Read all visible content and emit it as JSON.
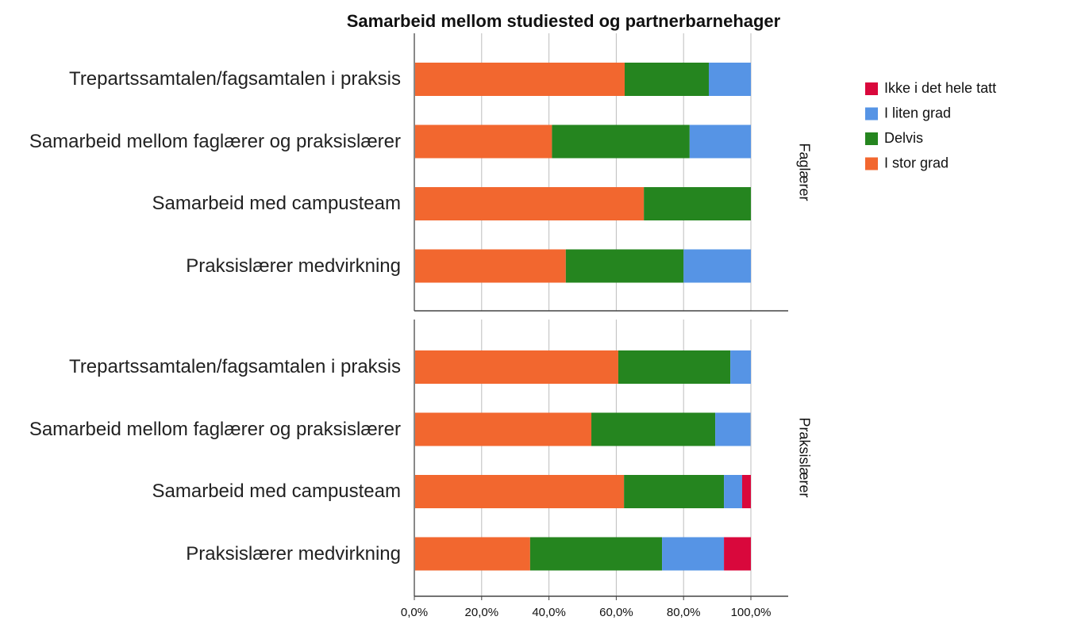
{
  "chart_data": {
    "type": "bar",
    "orientation": "horizontal",
    "stacked": true,
    "title": "Samarbeid mellom studiested og partnerbarnehager",
    "facets": [
      "Faglærer",
      "Praksislærer"
    ],
    "categories": [
      "Trepartssamtalen/fagsamtalen i praksis",
      "Samarbeid mellom faglærer og praksislærer",
      "Samarbeid med campusteam",
      "Praksislærer medvirkning"
    ],
    "series": [
      {
        "name": "Ikke i det hele tatt",
        "color": "#d9083c",
        "values": [
          [
            0,
            0,
            0,
            0
          ],
          [
            0,
            0,
            2.6,
            8.0
          ]
        ]
      },
      {
        "name": "I liten grad",
        "color": "#5694e5",
        "values": [
          [
            12.5,
            18.2,
            0,
            20.0
          ],
          [
            6.1,
            10.5,
            5.4,
            18.4
          ]
        ]
      },
      {
        "name": "Delvis",
        "color": "#25851f",
        "values": [
          [
            25.0,
            40.9,
            31.8,
            35.0
          ],
          [
            33.3,
            36.8,
            29.7,
            39.2
          ]
        ]
      },
      {
        "name": "I stor grad",
        "color": "#f2672f",
        "values": [
          [
            62.5,
            40.9,
            68.2,
            45.0
          ],
          [
            60.6,
            52.6,
            62.3,
            34.4
          ]
        ]
      }
    ],
    "xlim": [
      0,
      100
    ],
    "xticks": [
      {
        "value": 0,
        "label": "0,0%"
      },
      {
        "value": 20,
        "label": "20,0%"
      },
      {
        "value": 40,
        "label": "40,0%"
      },
      {
        "value": 60,
        "label": "60,0%"
      },
      {
        "value": 80,
        "label": "80,0%"
      },
      {
        "value": 100,
        "label": "100,0%"
      }
    ],
    "grid": true,
    "legend": "right"
  }
}
